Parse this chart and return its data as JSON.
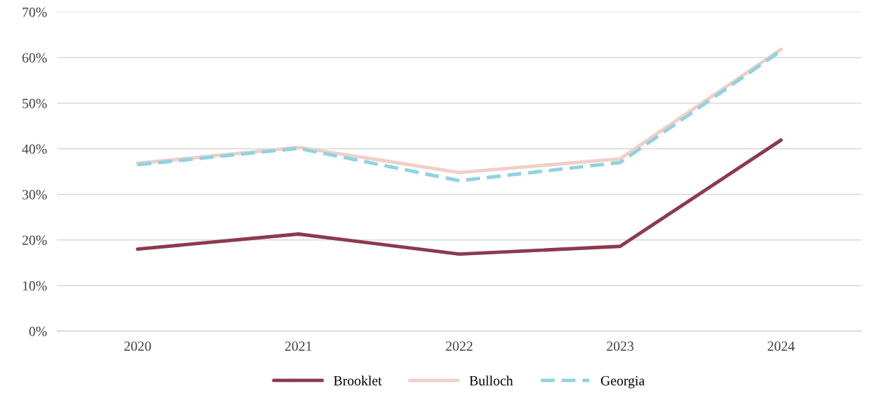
{
  "chart_data": {
    "type": "line",
    "categories": [
      "2020",
      "2021",
      "2022",
      "2023",
      "2024"
    ],
    "series": [
      {
        "name": "Brooklet",
        "color": "#8b3a4e",
        "line_style": "solid",
        "values": [
          18,
          21.3,
          16.9,
          18.6,
          41.9
        ]
      },
      {
        "name": "Bulloch",
        "color": "#f0cfc9",
        "line_style": "solid",
        "values": [
          36.8,
          40.3,
          34.8,
          37.8,
          61.8
        ]
      },
      {
        "name": "Georgia",
        "color": "#8fd3df",
        "line_style": "dashed",
        "values": [
          36.5,
          40.1,
          33.0,
          37.0,
          61.5
        ]
      }
    ],
    "ylim": [
      0,
      70
    ],
    "yticks": [
      {
        "value": 0,
        "label": "0%"
      },
      {
        "value": 10,
        "label": "10%"
      },
      {
        "value": 20,
        "label": "20%"
      },
      {
        "value": 30,
        "label": "30%"
      },
      {
        "value": 40,
        "label": "40%"
      },
      {
        "value": 50,
        "label": "50%"
      },
      {
        "value": 60,
        "label": "60%"
      },
      {
        "value": 70,
        "label": "70%"
      }
    ],
    "grid": "y",
    "legend": "bottom",
    "marker": "none"
  }
}
